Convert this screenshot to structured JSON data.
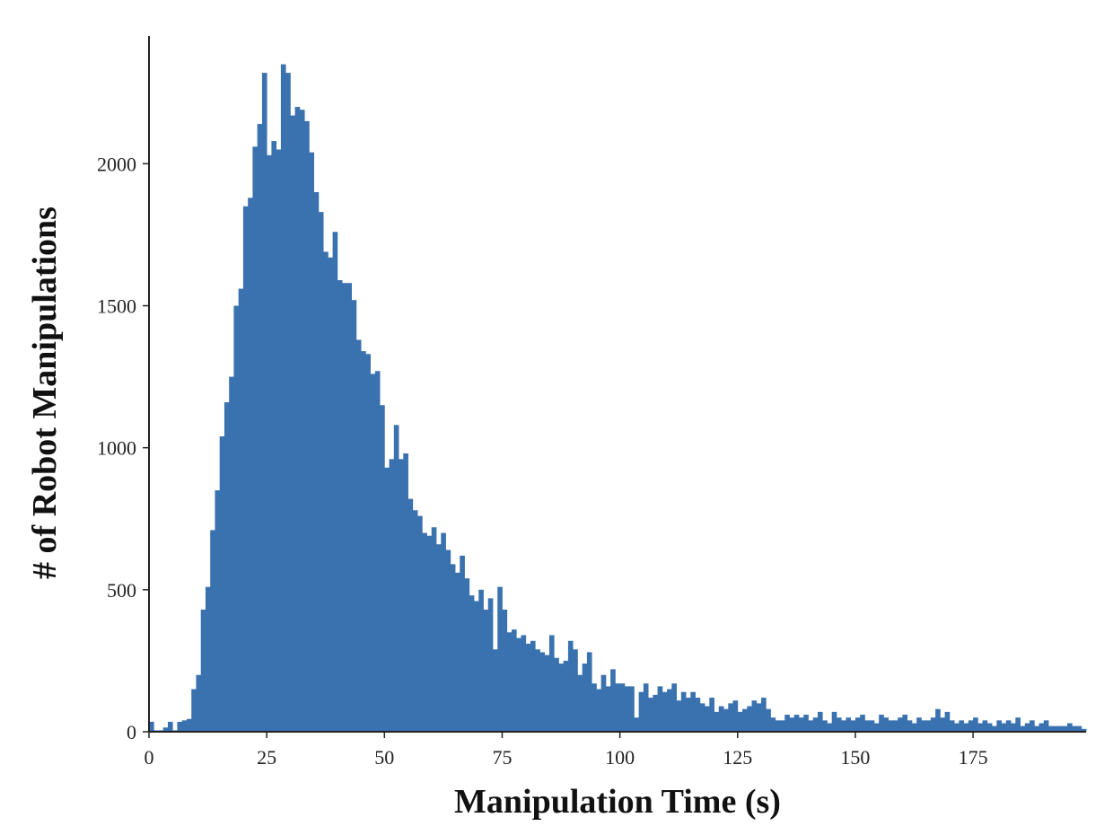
{
  "chart_data": {
    "type": "bar",
    "title": "",
    "xlabel": "Manipulation Time (s)",
    "ylabel": "# of Robot Manipulations",
    "xlim": [
      0,
      199
    ],
    "ylim": [
      0,
      2450
    ],
    "x_ticks": [
      0,
      25,
      50,
      75,
      100,
      125,
      150,
      175
    ],
    "y_ticks": [
      0,
      500,
      1000,
      1500,
      2000
    ],
    "bin_start": 0,
    "bin_width": 1,
    "bar_color": "#3a72b0",
    "grid": false,
    "values": [
      35,
      5,
      5,
      15,
      35,
      5,
      35,
      40,
      45,
      150,
      200,
      430,
      510,
      710,
      850,
      1040,
      1160,
      1250,
      1500,
      1560,
      1850,
      1880,
      2060,
      2140,
      2320,
      2030,
      2080,
      2050,
      2350,
      2320,
      2170,
      2200,
      2190,
      2150,
      2040,
      1900,
      1830,
      1690,
      1670,
      1760,
      1590,
      1580,
      1580,
      1520,
      1380,
      1340,
      1330,
      1260,
      1270,
      1150,
      930,
      960,
      1080,
      960,
      980,
      820,
      780,
      760,
      700,
      690,
      720,
      660,
      700,
      640,
      590,
      560,
      620,
      540,
      480,
      460,
      500,
      430,
      470,
      290,
      510,
      430,
      350,
      360,
      330,
      340,
      310,
      320,
      290,
      280,
      270,
      340,
      260,
      240,
      250,
      320,
      290,
      200,
      240,
      280,
      170,
      150,
      200,
      160,
      220,
      170,
      170,
      160,
      160,
      50,
      140,
      170,
      120,
      130,
      160,
      140,
      150,
      170,
      110,
      140,
      120,
      140,
      120,
      100,
      90,
      120,
      70,
      90,
      80,
      100,
      110,
      70,
      80,
      90,
      110,
      100,
      120,
      80,
      50,
      40,
      40,
      60,
      50,
      60,
      50,
      60,
      40,
      50,
      70,
      40,
      30,
      70,
      50,
      40,
      50,
      40,
      50,
      60,
      40,
      40,
      30,
      60,
      50,
      40,
      40,
      50,
      60,
      40,
      30,
      50,
      40,
      40,
      50,
      80,
      50,
      70,
      40,
      30,
      40,
      30,
      40,
      50,
      30,
      40,
      30,
      20,
      40,
      30,
      40,
      30,
      50,
      20,
      30,
      40,
      20,
      30,
      40,
      20,
      20,
      20,
      20,
      30,
      20,
      20,
      10
    ]
  }
}
